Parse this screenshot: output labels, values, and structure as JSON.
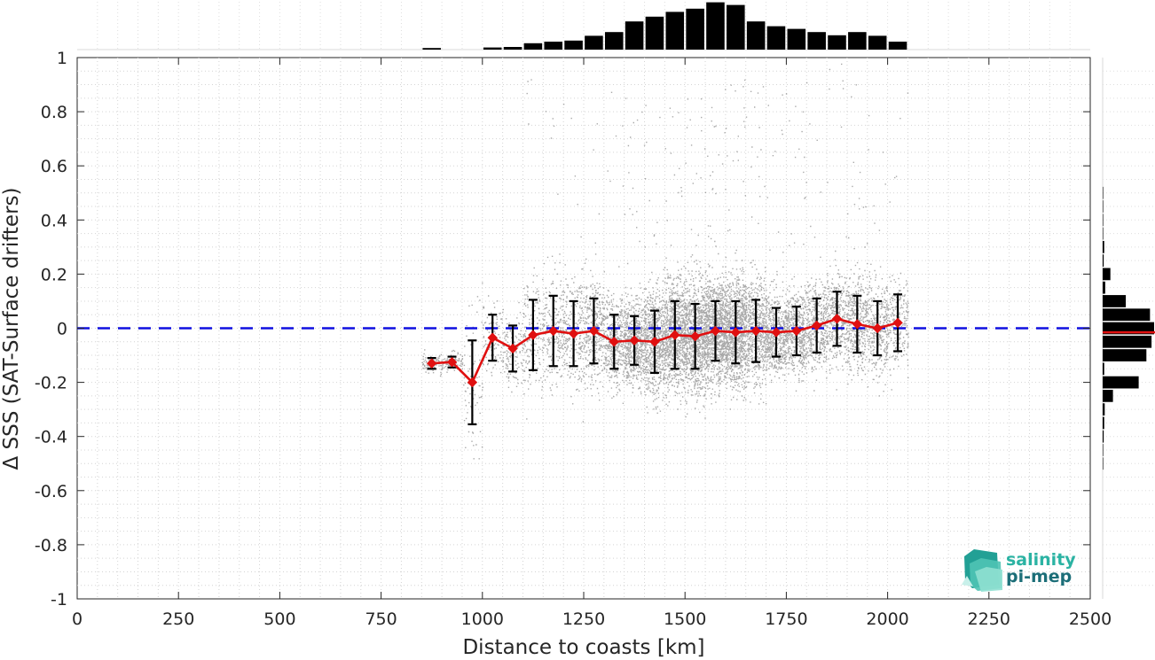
{
  "chart_data": {
    "type": "scatter",
    "xlabel": "Distance to coasts [km]",
    "ylabel": "Δ SSS (SAT-Surface drifters)",
    "xlim": [
      0,
      2500
    ],
    "ylim": [
      -1,
      1
    ],
    "xticks": [
      "0",
      "250",
      "500",
      "750",
      "1000",
      "1250",
      "1500",
      "1750",
      "2000",
      "2250",
      "2500"
    ],
    "yticks": [
      "-1",
      "-0.8",
      "-0.6",
      "-0.4",
      "-0.2",
      "0",
      "0.2",
      "0.4",
      "0.6",
      "0.8",
      "1"
    ],
    "grid": true,
    "reference_line": {
      "y": 0,
      "style": "dashed",
      "color": "#1010e0"
    },
    "colors": {
      "scatter": "#8c8c8c",
      "mean_line": "#e01010",
      "error_bars": "#000000",
      "histogram": "#000000",
      "median_marker": "#e01010"
    },
    "binned_mean": {
      "name": "mean ± std",
      "x": [
        875,
        925,
        975,
        1025,
        1075,
        1125,
        1175,
        1225,
        1275,
        1325,
        1375,
        1425,
        1475,
        1525,
        1575,
        1625,
        1675,
        1725,
        1775,
        1825,
        1875,
        1925,
        1975,
        2025
      ],
      "mean": [
        -0.13,
        -0.125,
        -0.2,
        -0.035,
        -0.075,
        -0.025,
        -0.01,
        -0.02,
        -0.01,
        -0.05,
        -0.045,
        -0.05,
        -0.025,
        -0.03,
        -0.01,
        -0.015,
        -0.01,
        -0.015,
        -0.01,
        0.01,
        0.035,
        0.015,
        0.0,
        0.02
      ],
      "std": [
        0.02,
        0.02,
        0.155,
        0.085,
        0.085,
        0.13,
        0.13,
        0.12,
        0.12,
        0.1,
        0.09,
        0.115,
        0.125,
        0.12,
        0.11,
        0.115,
        0.115,
        0.09,
        0.09,
        0.1,
        0.1,
        0.105,
        0.1,
        0.105
      ]
    },
    "x_histogram": {
      "bin_centers": [
        875,
        925,
        975,
        1025,
        1075,
        1125,
        1175,
        1225,
        1275,
        1325,
        1375,
        1425,
        1475,
        1525,
        1575,
        1625,
        1675,
        1725,
        1775,
        1825,
        1875,
        1925,
        1975,
        2025
      ],
      "relative_counts": [
        0.03,
        0.0,
        0.0,
        0.04,
        0.05,
        0.12,
        0.15,
        0.17,
        0.26,
        0.33,
        0.53,
        0.62,
        0.71,
        0.77,
        0.89,
        0.84,
        0.53,
        0.44,
        0.39,
        0.33,
        0.27,
        0.33,
        0.26,
        0.15
      ]
    },
    "y_histogram": {
      "bin_centers": [
        -0.5,
        -0.45,
        -0.4,
        -0.35,
        -0.3,
        -0.25,
        -0.2,
        -0.15,
        -0.1,
        -0.05,
        0.0,
        0.05,
        0.1,
        0.15,
        0.2,
        0.25,
        0.3,
        0.35,
        0.4,
        0.45,
        0.5
      ],
      "relative_counts": [
        0.01,
        0.01,
        0.02,
        0.03,
        0.04,
        0.2,
        0.7,
        0.03,
        0.85,
        0.95,
        1.0,
        0.92,
        0.45,
        0.05,
        0.15,
        0.02,
        0.03,
        0.01,
        0.01,
        0.01,
        0.01
      ],
      "median": -0.015
    },
    "scatter_cloud": {
      "x_range": [
        860,
        2040
      ],
      "y_range": [
        -0.48,
        0.98
      ]
    }
  },
  "logo": {
    "line1": "salinity",
    "line2": "pi-mep"
  }
}
